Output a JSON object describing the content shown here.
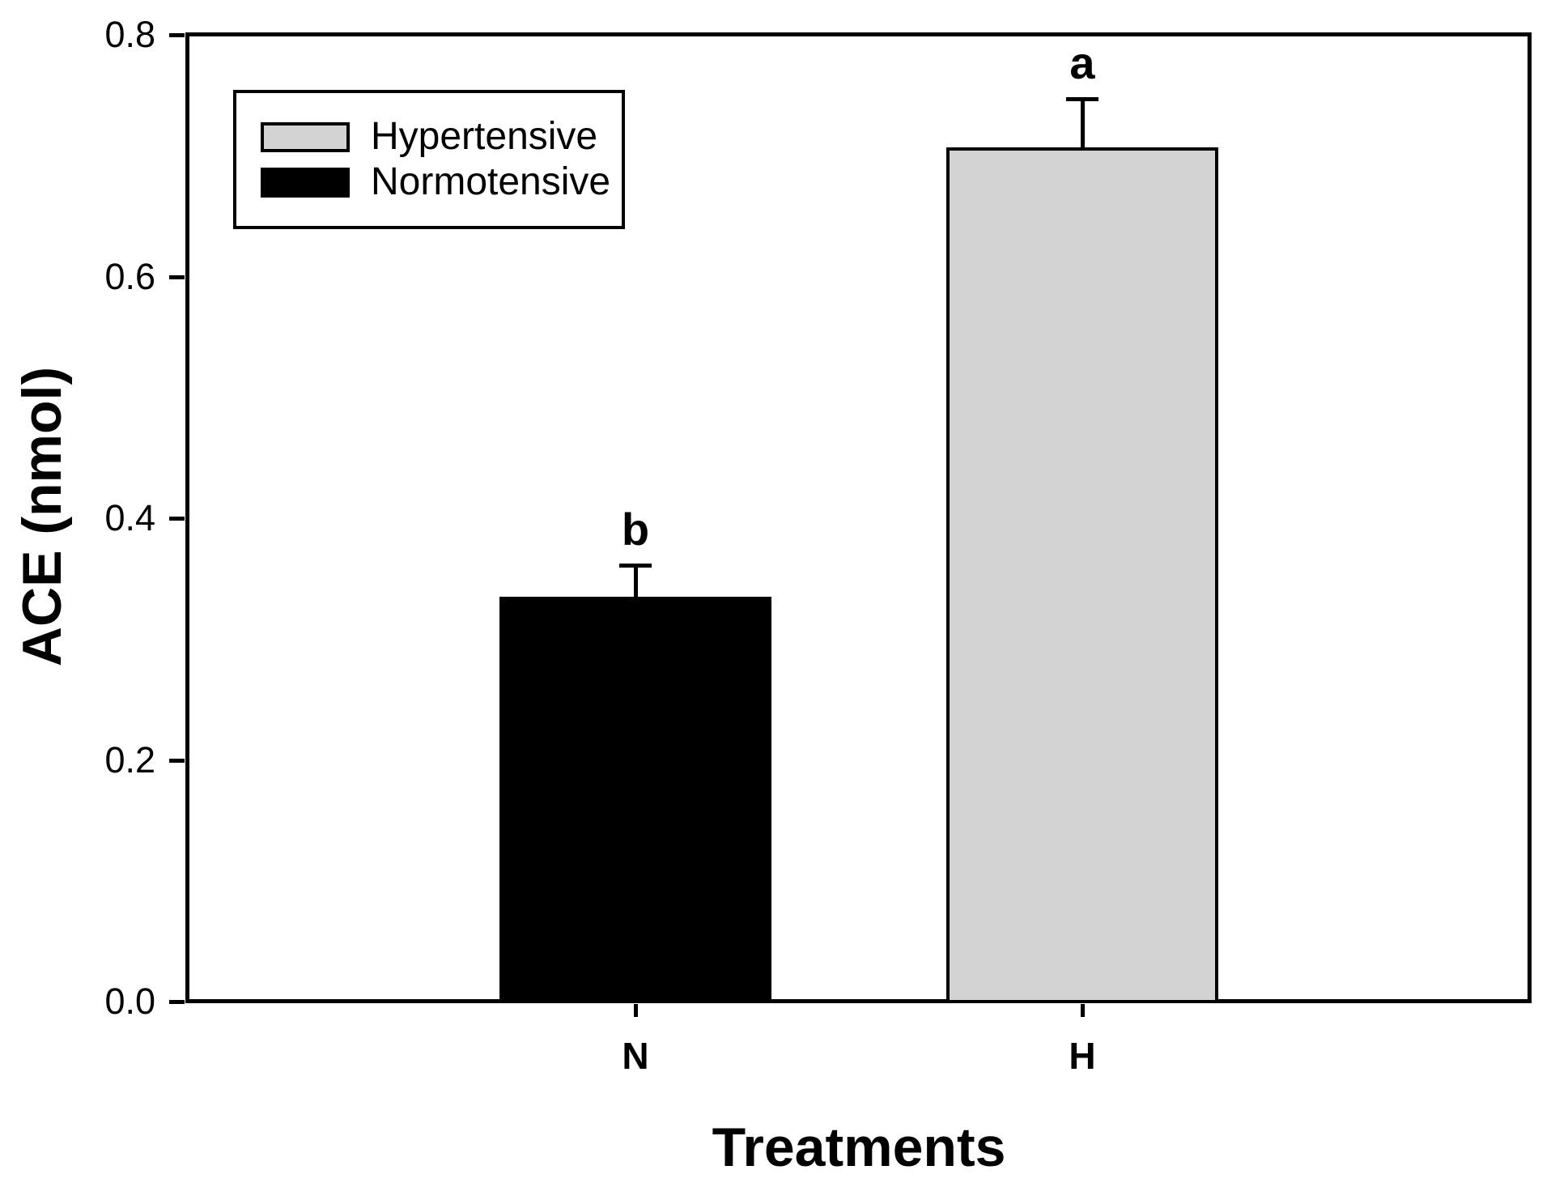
{
  "figure": {
    "xlabel": "Treatments",
    "ylabel": "ACE (nmol)"
  },
  "legend": {
    "entries": [
      {
        "label": "Hypertensive",
        "color": "#d3d3d3"
      },
      {
        "label": "Normotensive",
        "color": "#000000"
      }
    ]
  },
  "chart_data": {
    "type": "bar",
    "title": "",
    "xlabel": "Treatments",
    "ylabel": "ACE (nmol)",
    "categories": [
      "N",
      "H"
    ],
    "ylim": [
      0,
      0.8
    ],
    "yticks": [
      "0.0",
      "0.2",
      "0.4",
      "0.6",
      "0.8"
    ],
    "grid": false,
    "legend_position": "upper-left-inside",
    "bars": [
      {
        "category": "N",
        "series": "Normotensive",
        "value": 0.335,
        "error": 0.026,
        "sig_letter": "b",
        "fill": "#000000"
      },
      {
        "category": "H",
        "series": "Hypertensive",
        "value": 0.707,
        "error": 0.04,
        "sig_letter": "a",
        "fill": "#d3d3d3"
      }
    ]
  }
}
